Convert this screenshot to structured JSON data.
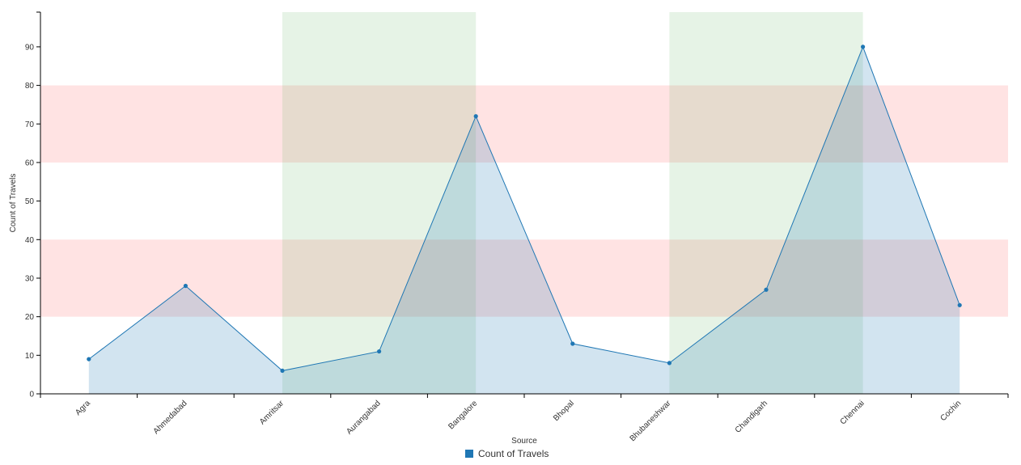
{
  "chart_data": {
    "type": "area",
    "categories": [
      "Agra",
      "Ahmedabad",
      "Amritsar",
      "Aurangabad",
      "Bangalore",
      "Bhopal",
      "Bhubaneshwar",
      "Chandigarh",
      "Chennai",
      "Cochin"
    ],
    "series": [
      {
        "name": "Count of Travels",
        "values": [
          9,
          28,
          6,
          11,
          72,
          13,
          8,
          27,
          90,
          23
        ],
        "color": "#1f77b4"
      }
    ],
    "xlabel": "Source",
    "ylabel": "Count of Travels",
    "ylim": [
      0,
      99
    ],
    "yticks": [
      0,
      10,
      20,
      30,
      40,
      50,
      60,
      70,
      80,
      90
    ],
    "y_bands": [
      {
        "from": 20,
        "to": 40,
        "color": "#ff6666"
      },
      {
        "from": 60,
        "to": 80,
        "color": "#ff6666"
      }
    ],
    "x_bands": [
      {
        "from": "Amritsar",
        "to": "Bangalore",
        "color": "#66b266"
      },
      {
        "from": "Bhubaneshwar",
        "to": "Chennai",
        "color": "#66b266"
      }
    ],
    "legend": {
      "position": "bottom-center",
      "entries": [
        "Count of Travels"
      ]
    },
    "grid": false,
    "colors": {
      "series": "#1f77b4",
      "area_fill": "#c6dbef",
      "axis": "#000000"
    }
  }
}
